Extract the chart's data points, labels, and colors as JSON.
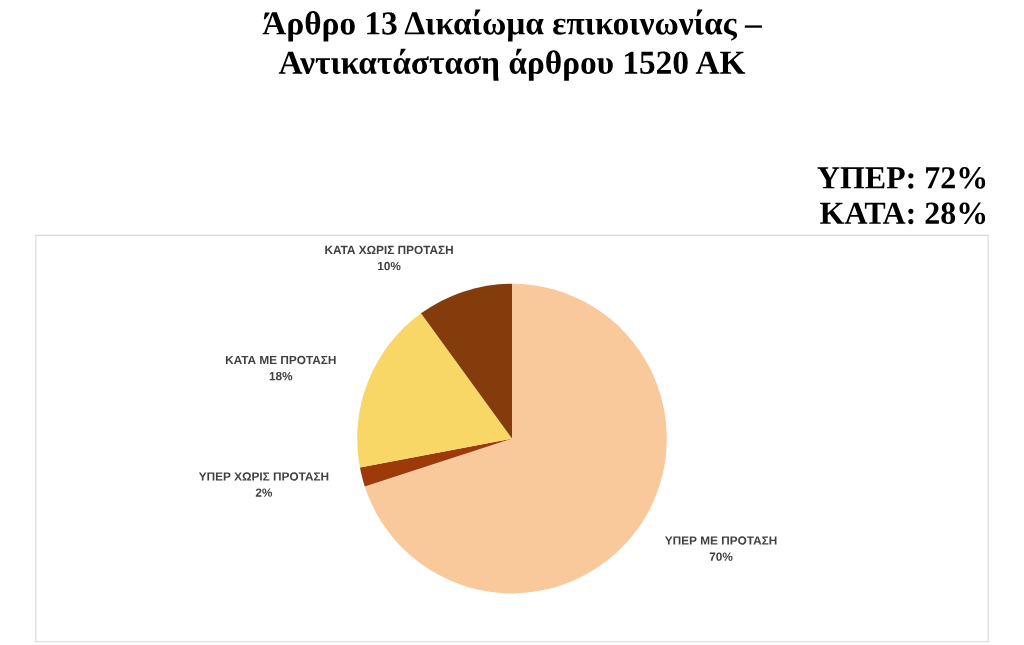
{
  "chart_data": {
    "type": "pie",
    "title": "Άρθρο 13 Δικαίωμα επικοινωνίας –\nΑντικατάσταση άρθρου 1520 ΑΚ",
    "categories": [
      "ΥΠΕΡ ΜΕ ΠΡΟΤΑΣΗ",
      "ΥΠΕΡ ΧΩΡΙΣ ΠΡΟΤΑΣΗ",
      "ΚΑΤΑ ΜΕ ΠΡΟΤΑΣΗ",
      "ΚΑΤΑ ΧΩΡΙΣ ΠΡΟΤΑΣΗ"
    ],
    "values": [
      70,
      2,
      18,
      10
    ],
    "colors": [
      "#f9c89b",
      "#9e3a0a",
      "#f8d766",
      "#843c0c"
    ],
    "value_labels": [
      "70%",
      "2%",
      "18%",
      "10%"
    ],
    "annotations": [
      "ΥΠΕΡ: 72%",
      "ΚΑΤΑ: 28%"
    ]
  }
}
